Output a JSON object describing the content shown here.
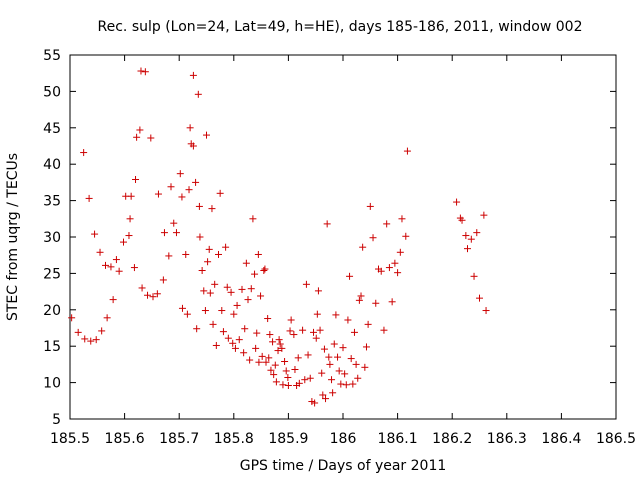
{
  "chart_data": {
    "type": "scatter",
    "title": "Rec. sulp (Lon=24, Lat=49, h=HE), days 185-186, 2011, window 002",
    "xlabel": "GPS time / Days of year 2011",
    "ylabel": "STEC from uqrg / TECUs",
    "xlim": [
      185.5,
      186.5
    ],
    "ylim": [
      5,
      55
    ],
    "x_ticks": [
      "185.5",
      "185.6",
      "185.7",
      "185.8",
      "185.9",
      "186",
      "186.1",
      "186.2",
      "186.3",
      "186.4",
      "186.5"
    ],
    "y_ticks": [
      "5",
      "10",
      "15",
      "20",
      "25",
      "30",
      "35",
      "40",
      "45",
      "50",
      "55"
    ],
    "marker": "plus",
    "color": "#cc0000",
    "grid": false,
    "points": [
      [
        185.503,
        18.9
      ],
      [
        185.515,
        16.9
      ],
      [
        185.525,
        41.6
      ],
      [
        185.527,
        16.0
      ],
      [
        185.535,
        35.3
      ],
      [
        185.538,
        15.7
      ],
      [
        185.545,
        30.4
      ],
      [
        185.548,
        15.9
      ],
      [
        185.555,
        27.9
      ],
      [
        185.558,
        17.1
      ],
      [
        185.565,
        26.1
      ],
      [
        185.568,
        18.9
      ],
      [
        185.575,
        25.9
      ],
      [
        185.579,
        21.4
      ],
      [
        185.585,
        26.9
      ],
      [
        185.59,
        25.3
      ],
      [
        185.598,
        29.3
      ],
      [
        185.602,
        35.6
      ],
      [
        185.608,
        30.2
      ],
      [
        185.61,
        32.5
      ],
      [
        185.612,
        35.6
      ],
      [
        185.618,
        25.8
      ],
      [
        185.62,
        37.9
      ],
      [
        185.622,
        43.7
      ],
      [
        185.628,
        44.7
      ],
      [
        185.63,
        52.8
      ],
      [
        185.638,
        52.7
      ],
      [
        185.632,
        23.0
      ],
      [
        185.642,
        22.0
      ],
      [
        185.648,
        43.6
      ],
      [
        185.652,
        21.8
      ],
      [
        185.66,
        22.2
      ],
      [
        185.662,
        35.9
      ],
      [
        185.671,
        24.1
      ],
      [
        185.673,
        30.6
      ],
      [
        185.681,
        27.4
      ],
      [
        185.685,
        36.9
      ],
      [
        185.69,
        31.9
      ],
      [
        185.695,
        30.6
      ],
      [
        185.702,
        38.7
      ],
      [
        185.705,
        35.5
      ],
      [
        185.706,
        20.2
      ],
      [
        185.712,
        27.6
      ],
      [
        185.715,
        19.4
      ],
      [
        185.718,
        36.5
      ],
      [
        185.72,
        45.0
      ],
      [
        185.722,
        42.8
      ],
      [
        185.726,
        42.5
      ],
      [
        185.726,
        52.2
      ],
      [
        185.73,
        37.5
      ],
      [
        185.732,
        17.4
      ],
      [
        185.735,
        49.6
      ],
      [
        185.737,
        34.2
      ],
      [
        185.738,
        30.0
      ],
      [
        185.742,
        25.4
      ],
      [
        185.745,
        22.6
      ],
      [
        185.748,
        19.9
      ],
      [
        185.75,
        44.0
      ],
      [
        185.752,
        26.6
      ],
      [
        185.755,
        28.3
      ],
      [
        185.757,
        22.3
      ],
      [
        185.76,
        33.9
      ],
      [
        185.762,
        18.0
      ],
      [
        185.765,
        23.5
      ],
      [
        185.768,
        15.1
      ],
      [
        185.772,
        27.6
      ],
      [
        185.775,
        36.0
      ],
      [
        185.778,
        19.9
      ],
      [
        185.781,
        17.0
      ],
      [
        185.785,
        28.6
      ],
      [
        185.788,
        23.1
      ],
      [
        185.79,
        16.1
      ],
      [
        185.795,
        22.4
      ],
      [
        185.798,
        15.4
      ],
      [
        185.8,
        19.4
      ],
      [
        185.803,
        14.7
      ],
      [
        185.806,
        20.6
      ],
      [
        185.81,
        15.9
      ],
      [
        185.815,
        22.8
      ],
      [
        185.818,
        14.1
      ],
      [
        185.82,
        17.4
      ],
      [
        185.823,
        26.4
      ],
      [
        185.826,
        21.4
      ],
      [
        185.829,
        13.1
      ],
      [
        185.832,
        22.9
      ],
      [
        185.835,
        32.5
      ],
      [
        185.838,
        24.9
      ],
      [
        185.84,
        14.7
      ],
      [
        185.842,
        16.8
      ],
      [
        185.845,
        27.6
      ],
      [
        185.846,
        12.8
      ],
      [
        185.849,
        21.9
      ],
      [
        185.852,
        13.6
      ],
      [
        185.855,
        25.4
      ],
      [
        185.857,
        25.6
      ],
      [
        185.859,
        12.8
      ],
      [
        185.862,
        18.8
      ],
      [
        185.864,
        13.4
      ],
      [
        185.866,
        16.6
      ],
      [
        185.868,
        11.7
      ],
      [
        185.871,
        15.6
      ],
      [
        185.873,
        11.1
      ],
      [
        185.876,
        12.4
      ],
      [
        185.878,
        10.1
      ],
      [
        185.881,
        14.4
      ],
      [
        185.883,
        15.9
      ],
      [
        185.885,
        15.3
      ],
      [
        185.888,
        14.7
      ],
      [
        185.89,
        9.7
      ],
      [
        185.893,
        12.9
      ],
      [
        185.896,
        11.6
      ],
      [
        185.899,
        10.7
      ],
      [
        185.9,
        9.6
      ],
      [
        185.903,
        17.1
      ],
      [
        185.905,
        18.6
      ],
      [
        185.91,
        16.6
      ],
      [
        185.912,
        11.8
      ],
      [
        185.915,
        9.6
      ],
      [
        185.918,
        13.4
      ],
      [
        185.92,
        9.9
      ],
      [
        185.926,
        17.2
      ],
      [
        185.93,
        10.4
      ],
      [
        185.933,
        23.5
      ],
      [
        185.936,
        13.8
      ],
      [
        185.94,
        10.6
      ],
      [
        185.943,
        7.4
      ],
      [
        185.946,
        16.9
      ],
      [
        185.948,
        7.2
      ],
      [
        185.951,
        16.1
      ],
      [
        185.953,
        19.4
      ],
      [
        185.955,
        22.6
      ],
      [
        185.958,
        17.2
      ],
      [
        185.961,
        11.3
      ],
      [
        185.963,
        8.3
      ],
      [
        185.966,
        14.6
      ],
      [
        185.968,
        7.8
      ],
      [
        185.971,
        31.8
      ],
      [
        185.974,
        13.5
      ],
      [
        185.976,
        12.5
      ],
      [
        185.979,
        10.4
      ],
      [
        185.981,
        8.6
      ],
      [
        185.984,
        15.3
      ],
      [
        185.987,
        19.3
      ],
      [
        185.99,
        13.5
      ],
      [
        185.993,
        11.6
      ],
      [
        185.996,
        9.8
      ],
      [
        186.0,
        14.8
      ],
      [
        186.003,
        11.2
      ],
      [
        186.006,
        9.7
      ],
      [
        186.009,
        18.6
      ],
      [
        186.012,
        24.6
      ],
      [
        186.015,
        13.3
      ],
      [
        186.018,
        9.8
      ],
      [
        186.021,
        16.9
      ],
      [
        186.024,
        12.5
      ],
      [
        186.027,
        10.6
      ],
      [
        186.03,
        21.3
      ],
      [
        186.033,
        21.9
      ],
      [
        186.036,
        28.6
      ],
      [
        186.04,
        12.1
      ],
      [
        186.043,
        14.9
      ],
      [
        186.046,
        18.0
      ],
      [
        186.05,
        34.2
      ],
      [
        186.055,
        29.9
      ],
      [
        186.06,
        20.9
      ],
      [
        186.065,
        25.6
      ],
      [
        186.07,
        25.3
      ],
      [
        186.075,
        17.2
      ],
      [
        186.08,
        31.8
      ],
      [
        186.085,
        25.8
      ],
      [
        186.09,
        21.1
      ],
      [
        186.095,
        26.4
      ],
      [
        186.1,
        25.1
      ],
      [
        186.105,
        27.9
      ],
      [
        186.108,
        32.5
      ],
      [
        186.115,
        30.1
      ],
      [
        186.118,
        41.8
      ],
      [
        186.208,
        34.8
      ],
      [
        186.215,
        32.6
      ],
      [
        186.218,
        32.3
      ],
      [
        186.225,
        30.2
      ],
      [
        186.228,
        28.4
      ],
      [
        186.235,
        29.7
      ],
      [
        186.24,
        24.6
      ],
      [
        186.245,
        30.6
      ],
      [
        186.25,
        21.6
      ],
      [
        186.258,
        33.0
      ],
      [
        186.262,
        19.9
      ]
    ]
  }
}
